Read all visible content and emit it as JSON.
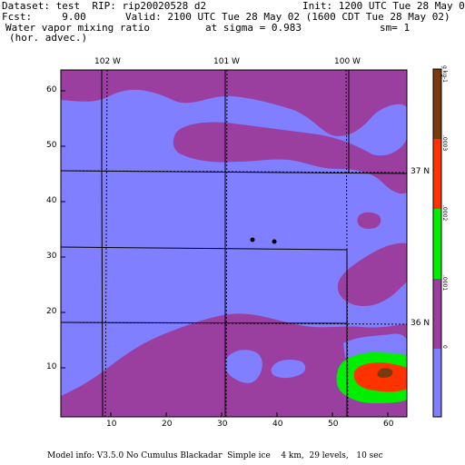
{
  "header": {
    "dataset": "Dataset: test  RIP: rip20020528 d2",
    "init": "Init: 1200 UTC Tue 28 May 02",
    "fcst": "Fcst:     9.00",
    "valid": "Valid: 2100 UTC Tue 28 May 02 (1600 CDT Tue 28 May 02)",
    "field": "Water vapor mixing ratio",
    "sigma": "at sigma = 0.983",
    "sm": "sm= 1",
    "advec": "(hor. advec.)"
  },
  "map": {
    "lon_labels": [
      "102 W",
      "101 W",
      "100 W"
    ],
    "lat_labels": [
      "37 N",
      "36 N"
    ],
    "x_ticks": [
      "10",
      "20",
      "30",
      "40",
      "50",
      "60"
    ],
    "y_ticks": [
      "10",
      "20",
      "30",
      "40",
      "50",
      "60"
    ]
  },
  "colorbar": {
    "labels": [
      "0",
      ".0001",
      ".0002",
      ".0003",
      "g kg-1"
    ],
    "colors": [
      "#7f7fff",
      "#9a3fa0",
      "#00ee00",
      "#ff3300",
      "#7a3a10"
    ]
  },
  "footer": "Model info: V3.5.0 No Cumulus Blackadar  Simple ice    4 km,  29 levels,   10 sec"
}
